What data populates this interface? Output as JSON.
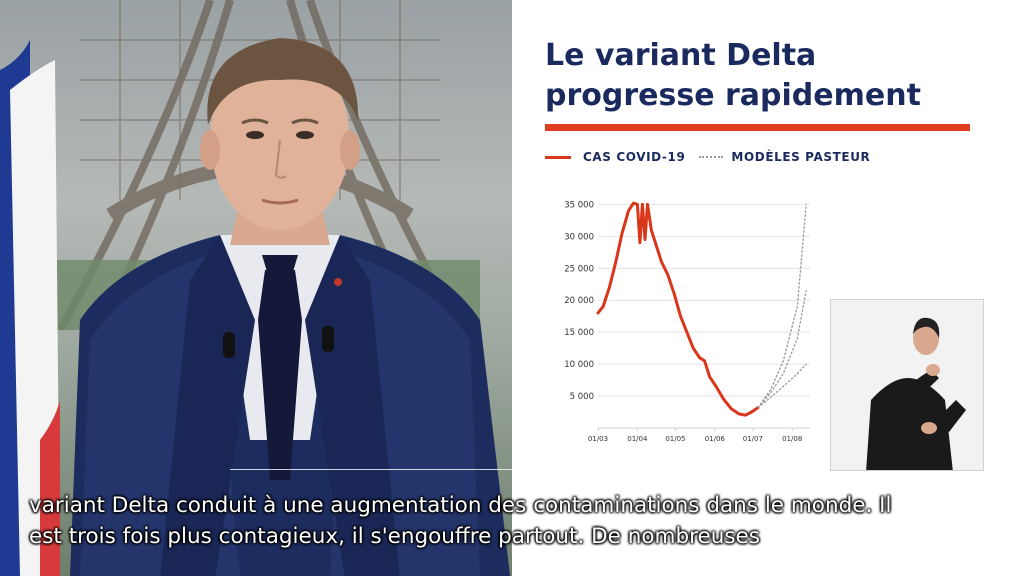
{
  "panel": {
    "title": "Le variant Delta\nprogresse rapidement"
  },
  "legend": {
    "items": [
      {
        "label": "CAS COVID-19",
        "style": "solid",
        "color": "#d9361a"
      },
      {
        "label": "MODÈLES PASTEUR",
        "style": "dotted",
        "color": "#999999"
      }
    ]
  },
  "chart_data": {
    "type": "line",
    "title": "Le variant Delta progresse rapidement",
    "x_ticks": [
      "01/03",
      "01/04",
      "01/05",
      "01/06",
      "01/07",
      "01/08"
    ],
    "y_ticks": [
      "5 000",
      "10 000",
      "15 000",
      "20 000",
      "25 000",
      "30 000",
      "35 000"
    ],
    "ylim": [
      0,
      36000
    ],
    "xlim": [
      "2021-03-01",
      "2021-08-15"
    ],
    "grid": "horizontal",
    "series": [
      {
        "name": "CAS COVID-19",
        "style": "solid",
        "color": "#d9361a",
        "points": [
          [
            "2021-03-01",
            18000
          ],
          [
            "2021-03-05",
            19000
          ],
          [
            "2021-03-10",
            22000
          ],
          [
            "2021-03-15",
            26000
          ],
          [
            "2021-03-20",
            30500
          ],
          [
            "2021-03-25",
            34000
          ],
          [
            "2021-03-29",
            35200
          ],
          [
            "2021-04-01",
            35000
          ],
          [
            "2021-04-03",
            29000
          ],
          [
            "2021-04-05",
            35000
          ],
          [
            "2021-04-07",
            29500
          ],
          [
            "2021-04-09",
            35000
          ],
          [
            "2021-04-12",
            31000
          ],
          [
            "2021-04-16",
            28500
          ],
          [
            "2021-04-20",
            26000
          ],
          [
            "2021-04-25",
            24000
          ],
          [
            "2021-04-30",
            21000
          ],
          [
            "2021-05-05",
            17500
          ],
          [
            "2021-05-10",
            15000
          ],
          [
            "2021-05-15",
            12500
          ],
          [
            "2021-05-20",
            11000
          ],
          [
            "2021-05-24",
            10500
          ],
          [
            "2021-05-28",
            8000
          ],
          [
            "2021-06-02",
            6500
          ],
          [
            "2021-06-08",
            4500
          ],
          [
            "2021-06-14",
            3000
          ],
          [
            "2021-06-20",
            2200
          ],
          [
            "2021-06-25",
            2000
          ],
          [
            "2021-06-30",
            2500
          ],
          [
            "2021-07-05",
            3200
          ]
        ]
      },
      {
        "name": "MODÈLES PASTEUR",
        "style": "dotted",
        "color": "#999999",
        "points": [
          [
            "2021-07-05",
            3200
          ],
          [
            "2021-07-15",
            6000
          ],
          [
            "2021-07-25",
            10500
          ],
          [
            "2021-08-05",
            19000
          ],
          [
            "2021-08-12",
            35000
          ]
        ]
      },
      {
        "name": "MODÈLES PASTEUR",
        "style": "dotted",
        "color": "#999999",
        "points": [
          [
            "2021-07-05",
            3200
          ],
          [
            "2021-07-15",
            5500
          ],
          [
            "2021-07-25",
            8500
          ],
          [
            "2021-08-05",
            14000
          ],
          [
            "2021-08-12",
            21500
          ]
        ]
      },
      {
        "name": "MODÈLES PASTEUR",
        "style": "dotted",
        "color": "#999999",
        "points": [
          [
            "2021-07-05",
            3200
          ],
          [
            "2021-07-15",
            4800
          ],
          [
            "2021-07-25",
            6500
          ],
          [
            "2021-08-05",
            8500
          ],
          [
            "2021-08-12",
            10000
          ]
        ]
      }
    ]
  },
  "subtitles": {
    "line1": "variant Delta conduit à une augmentation des contaminations dans le monde. Il",
    "line2": "est trois fois plus contagieux, il s'engouffre partout. De nombreuses"
  }
}
